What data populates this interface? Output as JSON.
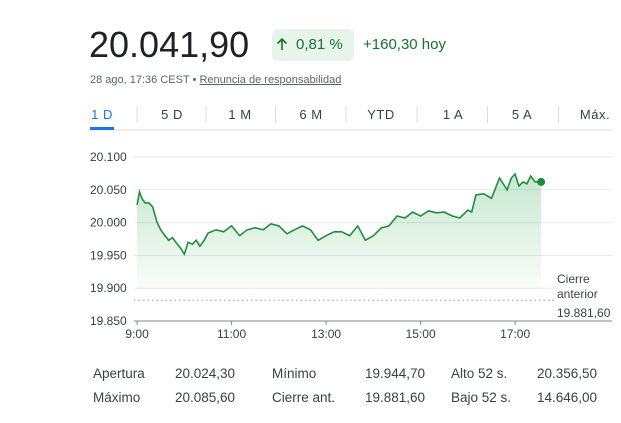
{
  "header": {
    "price": "20.041,90",
    "change_percent": "0,81 %",
    "change_abs": "+160,30 hoy",
    "timestamp": "28 ago, 17:36 CEST •",
    "disclaimer": "Renuncia de responsabilidad"
  },
  "tabs": [
    "1 D",
    "5 D",
    "1 M",
    "6 M",
    "YTD",
    "1 A",
    "5 A",
    "Máx."
  ],
  "chart_data": {
    "type": "line",
    "color": "#1e8e3e",
    "x": [
      9,
      9.05,
      9.1,
      9.17,
      9.25,
      9.33,
      9.42,
      9.5,
      9.58,
      9.67,
      9.75,
      9.83,
      9.92,
      10,
      10.08,
      10.17,
      10.25,
      10.33,
      10.42,
      10.5,
      10.67,
      10.83,
      11,
      11.17,
      11.33,
      11.5,
      11.67,
      11.83,
      12,
      12.17,
      12.33,
      12.5,
      12.67,
      12.83,
      13,
      13.17,
      13.33,
      13.5,
      13.67,
      13.83,
      14,
      14.17,
      14.33,
      14.5,
      14.67,
      14.83,
      15,
      15.17,
      15.33,
      15.5,
      15.67,
      15.83,
      16,
      16.08,
      16.17,
      16.33,
      16.5,
      16.67,
      16.75,
      16.83,
      16.92,
      17,
      17.08,
      17.17,
      17.25,
      17.33,
      17.42,
      17.55
    ],
    "values": [
      20027,
      20047,
      20037,
      20030,
      20030,
      20024,
      20001,
      19989,
      19981,
      19973,
      19977,
      19969,
      19961,
      19952,
      19970,
      19967,
      19973,
      19964,
      19973,
      19984,
      19989,
      19986,
      19995,
      19980,
      19989,
      19992,
      19989,
      19998,
      19995,
      19983,
      19989,
      19995,
      19989,
      19973,
      19980,
      19986,
      19986,
      19980,
      19995,
      19973,
      19980,
      19992,
      19995,
      20010,
      20007,
      20016,
      20010,
      20018,
      20015,
      20016,
      20010,
      20007,
      20019,
      20016,
      20042,
      20044,
      20037,
      20068,
      20059,
      20050,
      20068,
      20074,
      20056,
      20062,
      20059,
      20071,
      20062,
      20062
    ],
    "xlim": [
      8.85,
      19.05
    ],
    "xticks": [
      {
        "value": 9,
        "label": "9:00"
      },
      {
        "value": 11,
        "label": "11:00"
      },
      {
        "value": 13,
        "label": "13:00"
      },
      {
        "value": 15,
        "label": "15:00"
      },
      {
        "value": 17,
        "label": "17:00"
      }
    ],
    "ylim": [
      19850,
      20100
    ],
    "yticks": [
      {
        "value": 19850,
        "label": "19.850"
      },
      {
        "value": 19900,
        "label": "19.900"
      },
      {
        "value": 19950,
        "label": "19.950"
      },
      {
        "value": 20000,
        "label": "20.000"
      },
      {
        "value": 20050,
        "label": "20.050"
      },
      {
        "value": 20100,
        "label": "20.100"
      }
    ],
    "grid": true,
    "reference_line": {
      "label": "Cierre anterior",
      "value": 19881.6,
      "value_label": "19.881,60"
    }
  },
  "stats": [
    [
      "Apertura",
      "20.024,30",
      "Mínimo",
      "19.944,70",
      "Alto 52 s.",
      "20.356,50"
    ],
    [
      "Máximo",
      "20.085,60",
      "Cierre ant.",
      "19.881,60",
      "Bajo 52 s.",
      "14.646,00"
    ]
  ]
}
